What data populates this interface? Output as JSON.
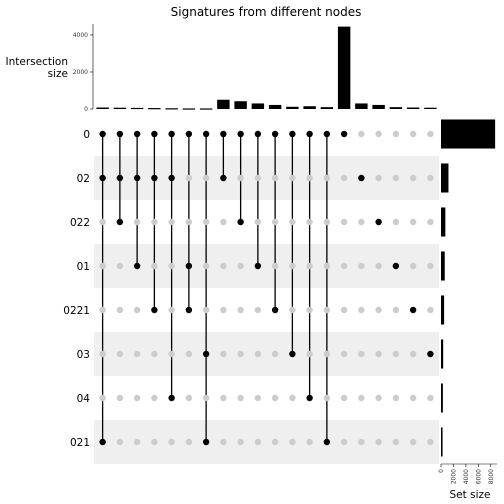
{
  "chart_data": {
    "type": "upset",
    "title": "Signatures from different nodes",
    "intersection_axis": {
      "label_line1": "Intersection",
      "label_line2": "size",
      "ylim": [
        0,
        4700
      ],
      "ticks": [
        "0",
        "2000",
        "4000"
      ]
    },
    "set_axis": {
      "label": "Set size",
      "xlim": [
        0,
        9000
      ],
      "ticks": [
        "0",
        "2000",
        "4000",
        "6000",
        "8000"
      ]
    },
    "sets": [
      {
        "name": "0",
        "size": 8700
      },
      {
        "name": "02",
        "size": 1200
      },
      {
        "name": "022",
        "size": 700
      },
      {
        "name": "01",
        "size": 600
      },
      {
        "name": "0221",
        "size": 500
      },
      {
        "name": "03",
        "size": 350
      },
      {
        "name": "04",
        "size": 300
      },
      {
        "name": "021",
        "size": 250
      }
    ],
    "intersections": [
      {
        "sets": [
          "0",
          "02",
          "021"
        ],
        "size": 80
      },
      {
        "sets": [
          "0",
          "02",
          "022"
        ],
        "size": 70
      },
      {
        "sets": [
          "0",
          "02",
          "01"
        ],
        "size": 60
      },
      {
        "sets": [
          "0",
          "02",
          "0221"
        ],
        "size": 50
      },
      {
        "sets": [
          "0",
          "02",
          "04"
        ],
        "size": 40
      },
      {
        "sets": [
          "0",
          "01",
          "0221"
        ],
        "size": 30
      },
      {
        "sets": [
          "0",
          "03",
          "021"
        ],
        "size": 30
      },
      {
        "sets": [
          "0",
          "02"
        ],
        "size": 500
      },
      {
        "sets": [
          "0",
          "022"
        ],
        "size": 420
      },
      {
        "sets": [
          "0",
          "01"
        ],
        "size": 300
      },
      {
        "sets": [
          "0",
          "0221"
        ],
        "size": 220
      },
      {
        "sets": [
          "0",
          "03"
        ],
        "size": 120
      },
      {
        "sets": [
          "0",
          "04"
        ],
        "size": 150
      },
      {
        "sets": [
          "0",
          "021"
        ],
        "size": 100
      },
      {
        "sets": [
          "0"
        ],
        "size": 4450
      },
      {
        "sets": [
          "02"
        ],
        "size": 300
      },
      {
        "sets": [
          "022"
        ],
        "size": 220
      },
      {
        "sets": [
          "01"
        ],
        "size": 100
      },
      {
        "sets": [
          "0221"
        ],
        "size": 80
      },
      {
        "sets": [
          "03"
        ],
        "size": 70
      }
    ]
  },
  "colors": {
    "bar": "#000000",
    "active_dot": "#000000",
    "inactive_dot": "#cccccc",
    "stripe": "#efefef"
  }
}
